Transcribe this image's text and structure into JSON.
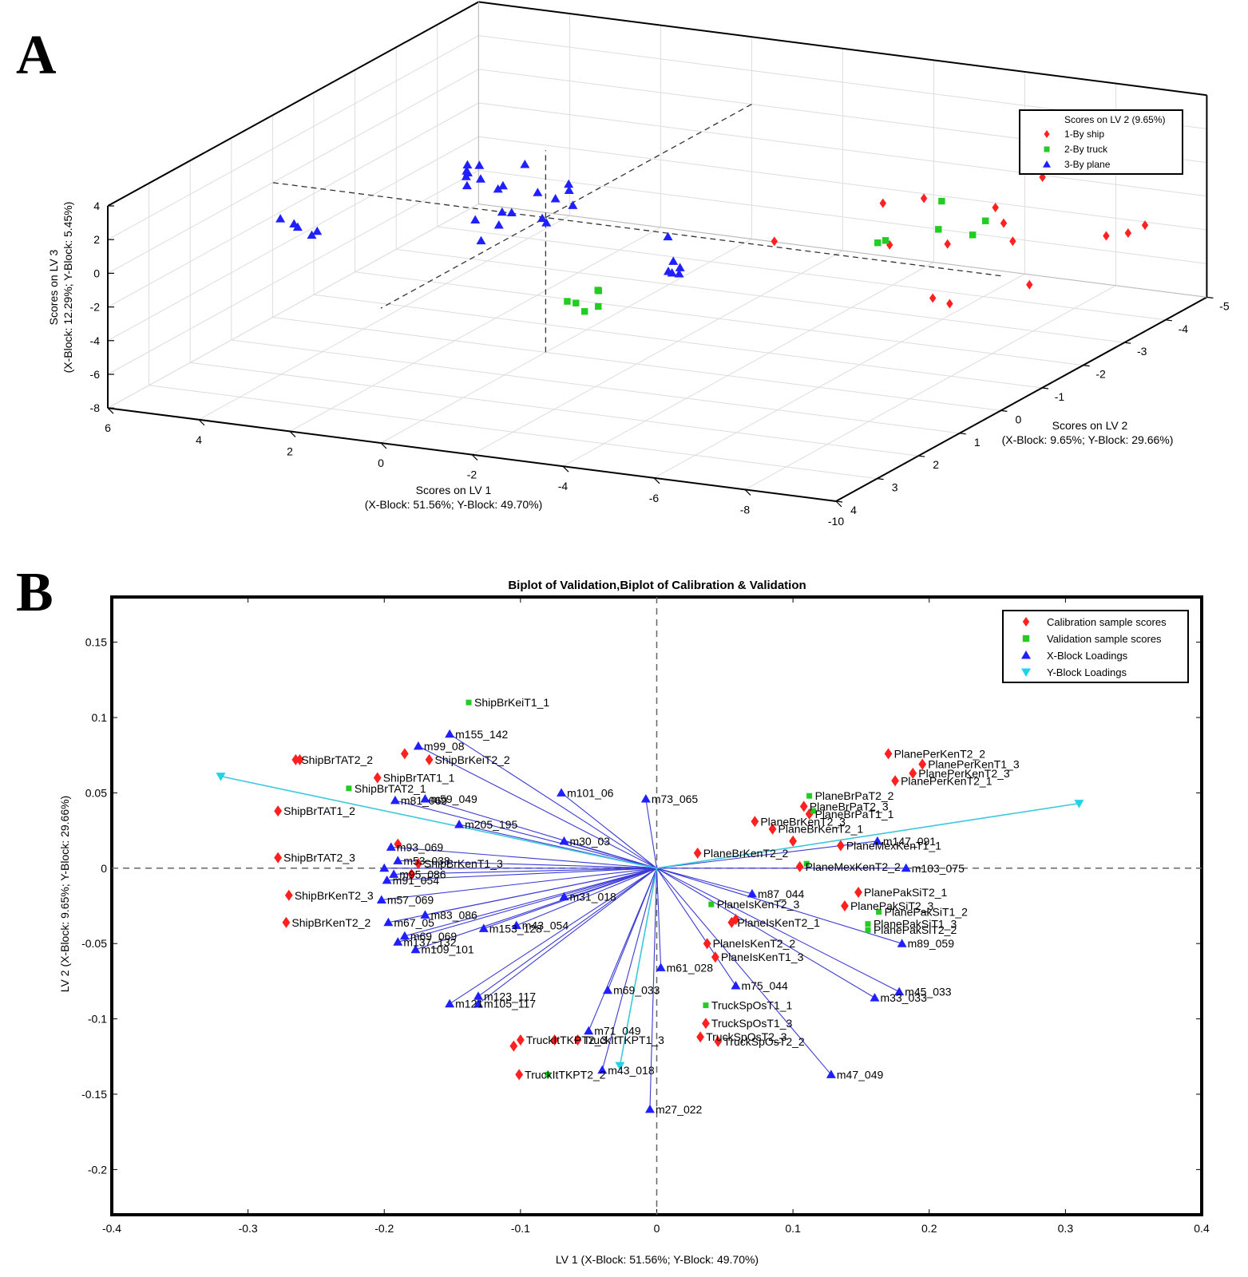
{
  "panel_a_letter": "A",
  "panel_b_letter": "B",
  "chart_data": [
    {
      "type": "scatter",
      "projection": "3d",
      "xlabel": [
        "Scores on LV 1",
        "(X-Block: 51.56%; Y-Block: 49.70%)"
      ],
      "ylabel": [
        "Scores on LV 2",
        "(X-Block: 9.65%; Y-Block: 29.66%)"
      ],
      "zlabel": [
        "Scores on LV 3",
        "(X-Block: 12.29%; Y-Block: 5.45%)"
      ],
      "xlim": [
        -10,
        6
      ],
      "ylim": [
        -5,
        4
      ],
      "zlim": [
        -8,
        4
      ],
      "x_ticks": [
        "6",
        "4",
        "2",
        "0",
        "-2",
        "-4",
        "-6",
        "-8",
        "-10"
      ],
      "y_ticks": [
        "-5",
        "-4",
        "-3",
        "-2",
        "-1",
        "0",
        "1",
        "2",
        "3",
        "4"
      ],
      "z_ticks": [
        "4",
        "2",
        "0",
        "-2",
        "-4",
        "-6",
        "-8"
      ],
      "legend_title": "Scores on LV 2 (9.65%)",
      "legend": [
        "1-By ship",
        "2-By truck",
        "3-By plane"
      ],
      "colors": [
        "#ff2020",
        "#22cc22",
        "#1f1fff"
      ],
      "series": [
        {
          "name": "1-By ship",
          "points": [
            [
              -4.3,
              -0.8,
              -1.0
            ],
            [
              -5.6,
              -2.0,
              0.1
            ],
            [
              -6.2,
              -1.5,
              -1.5
            ],
            [
              -6.5,
              -2.0,
              0.7
            ],
            [
              -7.2,
              -1.8,
              -1.5
            ],
            [
              -7.8,
              -2.3,
              0.2
            ],
            [
              -7.8,
              -2.5,
              -1.0
            ],
            [
              -8.0,
              -2.5,
              -2.0
            ],
            [
              -8.2,
              -3.0,
              1.2
            ],
            [
              -7.6,
              -1.0,
              -3.5
            ],
            [
              -7.7,
              -1.3,
              -4.2
            ],
            [
              -9.0,
              -1.8,
              -3.3
            ],
            [
              -9.6,
              -3.0,
              -1.8
            ],
            [
              -9.9,
              -3.2,
              -1.8
            ],
            [
              -10.0,
              -3.5,
              -1.7
            ]
          ]
        },
        {
          "name": "2-By truck",
          "points": [
            [
              -3.2,
              2.8,
              -0.2
            ],
            [
              -3.3,
              2.7,
              -0.8
            ],
            [
              -3.1,
              2.9,
              0.0
            ],
            [
              -3.6,
              2.7,
              -0.4
            ],
            [
              -3.5,
              2.6,
              0.4
            ],
            [
              -3.7,
              2.8,
              0.7
            ],
            [
              -6.3,
              -1.1,
              -0.8
            ],
            [
              -6.2,
              -1.4,
              -1.1
            ],
            [
              -7.0,
              -1.8,
              -0.7
            ],
            [
              -6.8,
              -2.1,
              0.5
            ],
            [
              -7.3,
              -2.3,
              -1.6
            ],
            [
              -7.4,
              -2.5,
              -1.0
            ]
          ]
        },
        {
          "name": "3-By plane",
          "points": [
            [
              4.2,
              1.8,
              0.9
            ],
            [
              4.0,
              1.6,
              0.2
            ],
            [
              3.9,
              1.8,
              0.7
            ],
            [
              3.6,
              1.7,
              0.0
            ],
            [
              3.3,
              1.9,
              0.6
            ],
            [
              2.1,
              -0.4,
              1.5
            ],
            [
              2.0,
              -0.3,
              0.8
            ],
            [
              1.9,
              -0.2,
              2.2
            ],
            [
              2.2,
              -0.5,
              1.0
            ],
            [
              1.7,
              -0.3,
              1.3
            ],
            [
              2.0,
              -0.6,
              1.6
            ],
            [
              1.8,
              -0.1,
              1.9
            ],
            [
              1.5,
              -0.5,
              0.5
            ],
            [
              1.3,
              -0.4,
              0.9
            ],
            [
              1.0,
              -0.6,
              2.0
            ],
            [
              0.6,
              -0.9,
              -0.3
            ],
            [
              0.9,
              -0.8,
              0.1
            ],
            [
              0.4,
              -1.0,
              0.5
            ],
            [
              0.3,
              -0.9,
              0.3
            ],
            [
              2.0,
              -0.5,
              -1.5
            ],
            [
              1.3,
              -0.3,
              -1.3
            ],
            [
              1.6,
              -0.2,
              -2.2
            ],
            [
              1.2,
              -0.5,
              -0.8
            ],
            [
              1.5,
              -0.6,
              -1.0
            ],
            [
              0.8,
              -0.9,
              -1.8
            ],
            [
              0.4,
              -1.1,
              -0.9
            ],
            [
              0.8,
              -0.8,
              -1.4
            ],
            [
              -3.6,
              1.0,
              -0.6
            ],
            [
              -3.5,
              0.8,
              -1.0
            ],
            [
              -3.8,
              1.1,
              0.2
            ],
            [
              -4.2,
              1.4,
              0.0
            ],
            [
              -4.4,
              1.6,
              0.7
            ],
            [
              -1.6,
              -1.2,
              -2.2
            ]
          ]
        }
      ]
    },
    {
      "type": "scatter",
      "title": "Biplot of Validation,Biplot of Calibration & Validation",
      "xlabel": "LV 1 (X-Block: 51.56%; Y-Block: 49.70%)",
      "ylabel": "LV 2 (X-Block: 9.65%; Y-Block: 29.66%)",
      "xlim": [
        -0.4,
        0.4
      ],
      "ylim": [
        -0.23,
        0.18
      ],
      "x_ticks": [
        "-0.4",
        "-0.3",
        "-0.2",
        "-0.1",
        "0",
        "0.1",
        "0.2",
        "0.3",
        "0.4"
      ],
      "y_ticks": [
        "0.15",
        "0.1",
        "0.05",
        "0",
        "-0.05",
        "-0.1",
        "-0.15",
        "-0.2"
      ],
      "legend": [
        "Calibration sample scores",
        "Validation sample scores",
        "X-Block Loadings",
        "Y-Block Loadings"
      ],
      "colors": {
        "calibration": "#ff2020",
        "validation": "#22cc22",
        "xload": "#1f1fff",
        "yload": "#22d3e8",
        "xline": "#3b3bd6",
        "yline": "#3cc8dc"
      },
      "calibration_scores": [
        {
          "x": -0.265,
          "y": 0.072,
          "label": "ShipBrTAT2_2"
        },
        {
          "x": -0.262,
          "y": 0.072,
          "label": ""
        },
        {
          "x": -0.205,
          "y": 0.06,
          "label": "ShipBrTAT1_1"
        },
        {
          "x": -0.278,
          "y": 0.038,
          "label": "ShipBrTAT1_2"
        },
        {
          "x": -0.278,
          "y": 0.007,
          "label": "ShipBrTAT2_3"
        },
        {
          "x": -0.27,
          "y": -0.018,
          "label": "ShipBrKenT2_3"
        },
        {
          "x": -0.272,
          "y": -0.036,
          "label": "ShipBrKenT2_2"
        },
        {
          "x": -0.185,
          "y": 0.076,
          "label": ""
        },
        {
          "x": -0.167,
          "y": 0.072,
          "label": "ShipBrKeiT2_2"
        },
        {
          "x": -0.19,
          "y": 0.016,
          "label": ""
        },
        {
          "x": -0.175,
          "y": 0.003,
          "label": "ShipBrKenT1_3"
        },
        {
          "x": -0.18,
          "y": -0.004,
          "label": ""
        },
        {
          "x": 0.17,
          "y": 0.076,
          "label": "PlanePerKenT2_2"
        },
        {
          "x": 0.195,
          "y": 0.069,
          "label": "PlanePerKenT1_3"
        },
        {
          "x": 0.188,
          "y": 0.063,
          "label": "PlanePerKenT2_3"
        },
        {
          "x": 0.175,
          "y": 0.058,
          "label": "PlanePerKenT2_1"
        },
        {
          "x": 0.108,
          "y": 0.041,
          "label": "PlaneBrPaT2_3"
        },
        {
          "x": 0.112,
          "y": 0.036,
          "label": "PlaneBrPaT1_1"
        },
        {
          "x": 0.072,
          "y": 0.031,
          "label": "PlaneBrKenT2_3"
        },
        {
          "x": 0.085,
          "y": 0.026,
          "label": "PlaneBrKenT2_1"
        },
        {
          "x": 0.1,
          "y": 0.018,
          "label": ""
        },
        {
          "x": 0.135,
          "y": 0.015,
          "label": "PlaneMexKenT1_1"
        },
        {
          "x": 0.03,
          "y": 0.01,
          "label": "PlaneBrKenT2_2"
        },
        {
          "x": 0.105,
          "y": 0.001,
          "label": "PlaneMexKenT2_2"
        },
        {
          "x": 0.148,
          "y": -0.016,
          "label": "PlanePakSiT2_1"
        },
        {
          "x": 0.138,
          "y": -0.025,
          "label": "PlanePakSiT2_3"
        },
        {
          "x": 0.055,
          "y": -0.036,
          "label": "PlaneIsKenT2_1"
        },
        {
          "x": 0.058,
          "y": -0.034,
          "label": ""
        },
        {
          "x": 0.037,
          "y": -0.05,
          "label": "PlaneIsKenT2_2"
        },
        {
          "x": 0.043,
          "y": -0.059,
          "label": "PlaneIsKenT1_3"
        },
        {
          "x": 0.036,
          "y": -0.103,
          "label": "TruckSpOsT1_3"
        },
        {
          "x": 0.032,
          "y": -0.112,
          "label": "TruckSpOsT2_3"
        },
        {
          "x": 0.045,
          "y": -0.115,
          "label": "TruckSpOsT2_2"
        },
        {
          "x": -0.1,
          "y": -0.114,
          "label": "TruckItTKPT2_3"
        },
        {
          "x": -0.105,
          "y": -0.118,
          "label": ""
        },
        {
          "x": -0.075,
          "y": -0.114,
          "label": ""
        },
        {
          "x": -0.058,
          "y": -0.114,
          "label": "TruckItTKPT1_3"
        },
        {
          "x": -0.101,
          "y": -0.137,
          "label": "TruckItTKPT2_2"
        }
      ],
      "validation_scores": [
        {
          "x": -0.138,
          "y": 0.11,
          "label": "ShipBrKeiT1_1"
        },
        {
          "x": -0.226,
          "y": 0.053,
          "label": "ShipBrTAT2_1"
        },
        {
          "x": 0.112,
          "y": 0.048,
          "label": "PlaneBrPaT2_2"
        },
        {
          "x": 0.115,
          "y": 0.038,
          "label": ""
        },
        {
          "x": 0.11,
          "y": 0.003,
          "label": ""
        },
        {
          "x": 0.04,
          "y": -0.024,
          "label": "PlaneIsKenT2_3"
        },
        {
          "x": 0.163,
          "y": -0.029,
          "label": "PlanePakSiT1_2"
        },
        {
          "x": 0.155,
          "y": -0.037,
          "label": "PlanePakSiT1_3"
        },
        {
          "x": 0.155,
          "y": -0.041,
          "label": "PlanePakSiT2_2"
        },
        {
          "x": 0.036,
          "y": -0.091,
          "label": "TruckSpOsT1_1"
        },
        {
          "x": -0.08,
          "y": -0.137,
          "label": ""
        }
      ],
      "x_loadings": [
        {
          "x": -0.152,
          "y": 0.089,
          "label": "m155_142"
        },
        {
          "x": -0.175,
          "y": 0.081,
          "label": "m99_08"
        },
        {
          "x": -0.07,
          "y": 0.05,
          "label": "m101_06"
        },
        {
          "x": -0.008,
          "y": 0.046,
          "label": "m73_065"
        },
        {
          "x": -0.192,
          "y": 0.045,
          "label": "m81_069"
        },
        {
          "x": -0.17,
          "y": 0.046,
          "label": "m59_049"
        },
        {
          "x": -0.145,
          "y": 0.029,
          "label": "m205_195"
        },
        {
          "x": -0.068,
          "y": 0.018,
          "label": "m30_03"
        },
        {
          "x": -0.195,
          "y": 0.014,
          "label": "m93_069"
        },
        {
          "x": -0.19,
          "y": 0.005,
          "label": "m53_038"
        },
        {
          "x": -0.2,
          "y": 0.0,
          "label": ""
        },
        {
          "x": -0.193,
          "y": -0.004,
          "label": "m95_086"
        },
        {
          "x": -0.198,
          "y": -0.008,
          "label": "m91_054"
        },
        {
          "x": -0.202,
          "y": -0.021,
          "label": "m57_069"
        },
        {
          "x": -0.17,
          "y": -0.031,
          "label": "m83_086"
        },
        {
          "x": -0.197,
          "y": -0.036,
          "label": "m67_05"
        },
        {
          "x": -0.185,
          "y": -0.045,
          "label": "m69_069"
        },
        {
          "x": -0.19,
          "y": -0.049,
          "label": "m137_132"
        },
        {
          "x": -0.177,
          "y": -0.054,
          "label": "m109_101"
        },
        {
          "x": -0.127,
          "y": -0.04,
          "label": "m153_128"
        },
        {
          "x": -0.103,
          "y": -0.038,
          "label": "m43_054"
        },
        {
          "x": -0.068,
          "y": -0.019,
          "label": "m31_018"
        },
        {
          "x": -0.131,
          "y": -0.085,
          "label": "m123_117"
        },
        {
          "x": -0.131,
          "y": -0.09,
          "label": "m105_117"
        },
        {
          "x": -0.152,
          "y": -0.09,
          "label": "m121"
        },
        {
          "x": -0.036,
          "y": -0.081,
          "label": "m69_033"
        },
        {
          "x": -0.05,
          "y": -0.108,
          "label": "m71_049"
        },
        {
          "x": -0.04,
          "y": -0.134,
          "label": "m43_018"
        },
        {
          "x": -0.005,
          "y": -0.16,
          "label": "m27_022"
        },
        {
          "x": 0.003,
          "y": -0.066,
          "label": "m61_028"
        },
        {
          "x": 0.058,
          "y": -0.078,
          "label": "m75_044"
        },
        {
          "x": 0.07,
          "y": -0.017,
          "label": "m87_044"
        },
        {
          "x": 0.128,
          "y": -0.137,
          "label": "m47_049"
        },
        {
          "x": 0.16,
          "y": -0.086,
          "label": "m33_033"
        },
        {
          "x": 0.178,
          "y": -0.082,
          "label": "m45_033"
        },
        {
          "x": 0.18,
          "y": -0.05,
          "label": "m89_059"
        },
        {
          "x": 0.183,
          "y": 0.0,
          "label": "m103_075"
        },
        {
          "x": 0.162,
          "y": 0.018,
          "label": "m147_091"
        }
      ],
      "y_loadings": [
        {
          "x": -0.32,
          "y": 0.061
        },
        {
          "x": 0.31,
          "y": 0.043
        },
        {
          "x": -0.027,
          "y": -0.131
        }
      ]
    }
  ]
}
